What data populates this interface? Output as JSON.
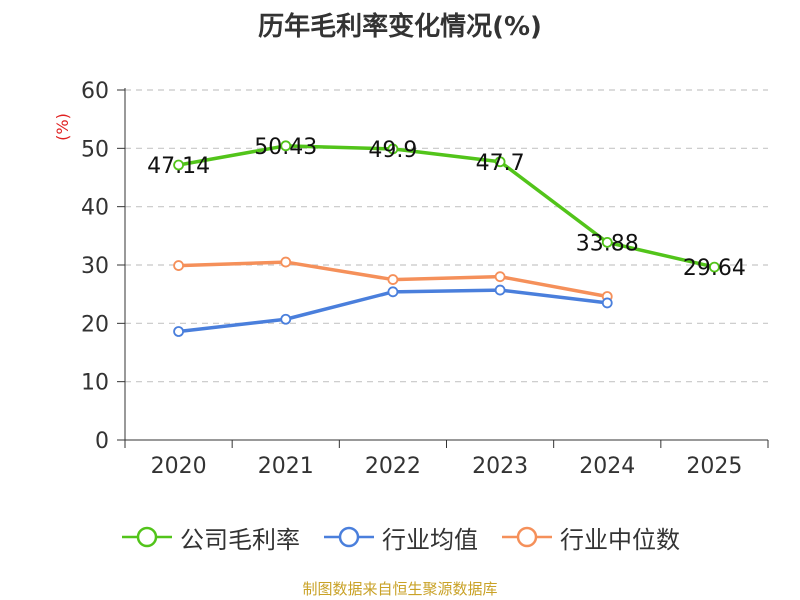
{
  "chart_data": {
    "type": "line",
    "title": "历年毛利率变化情况(%)",
    "ylabel": "(%)",
    "xlabel": "",
    "ylim": [
      0,
      60
    ],
    "yticks": [
      0,
      10,
      20,
      30,
      40,
      50,
      60
    ],
    "categories": [
      "2020",
      "2021",
      "2022",
      "2023",
      "2024",
      "2025"
    ],
    "series": [
      {
        "name": "公司毛利率",
        "color": "#52c41a",
        "values": [
          47.14,
          50.43,
          49.9,
          47.7,
          33.88,
          29.64
        ],
        "labels": [
          "47.14",
          "50.43",
          "49.9",
          "47.7",
          "33.88",
          "29.64"
        ]
      },
      {
        "name": "行业均值",
        "color": "#4a7fdc",
        "values": [
          18.6,
          20.7,
          25.4,
          25.7,
          23.5,
          null
        ]
      },
      {
        "name": "行业中位数",
        "color": "#f5905a",
        "values": [
          29.9,
          30.5,
          27.5,
          28.0,
          24.6,
          null
        ]
      }
    ],
    "grid": true,
    "legend_position": "bottom"
  },
  "source": "制图数据来自恒生聚源数据库"
}
